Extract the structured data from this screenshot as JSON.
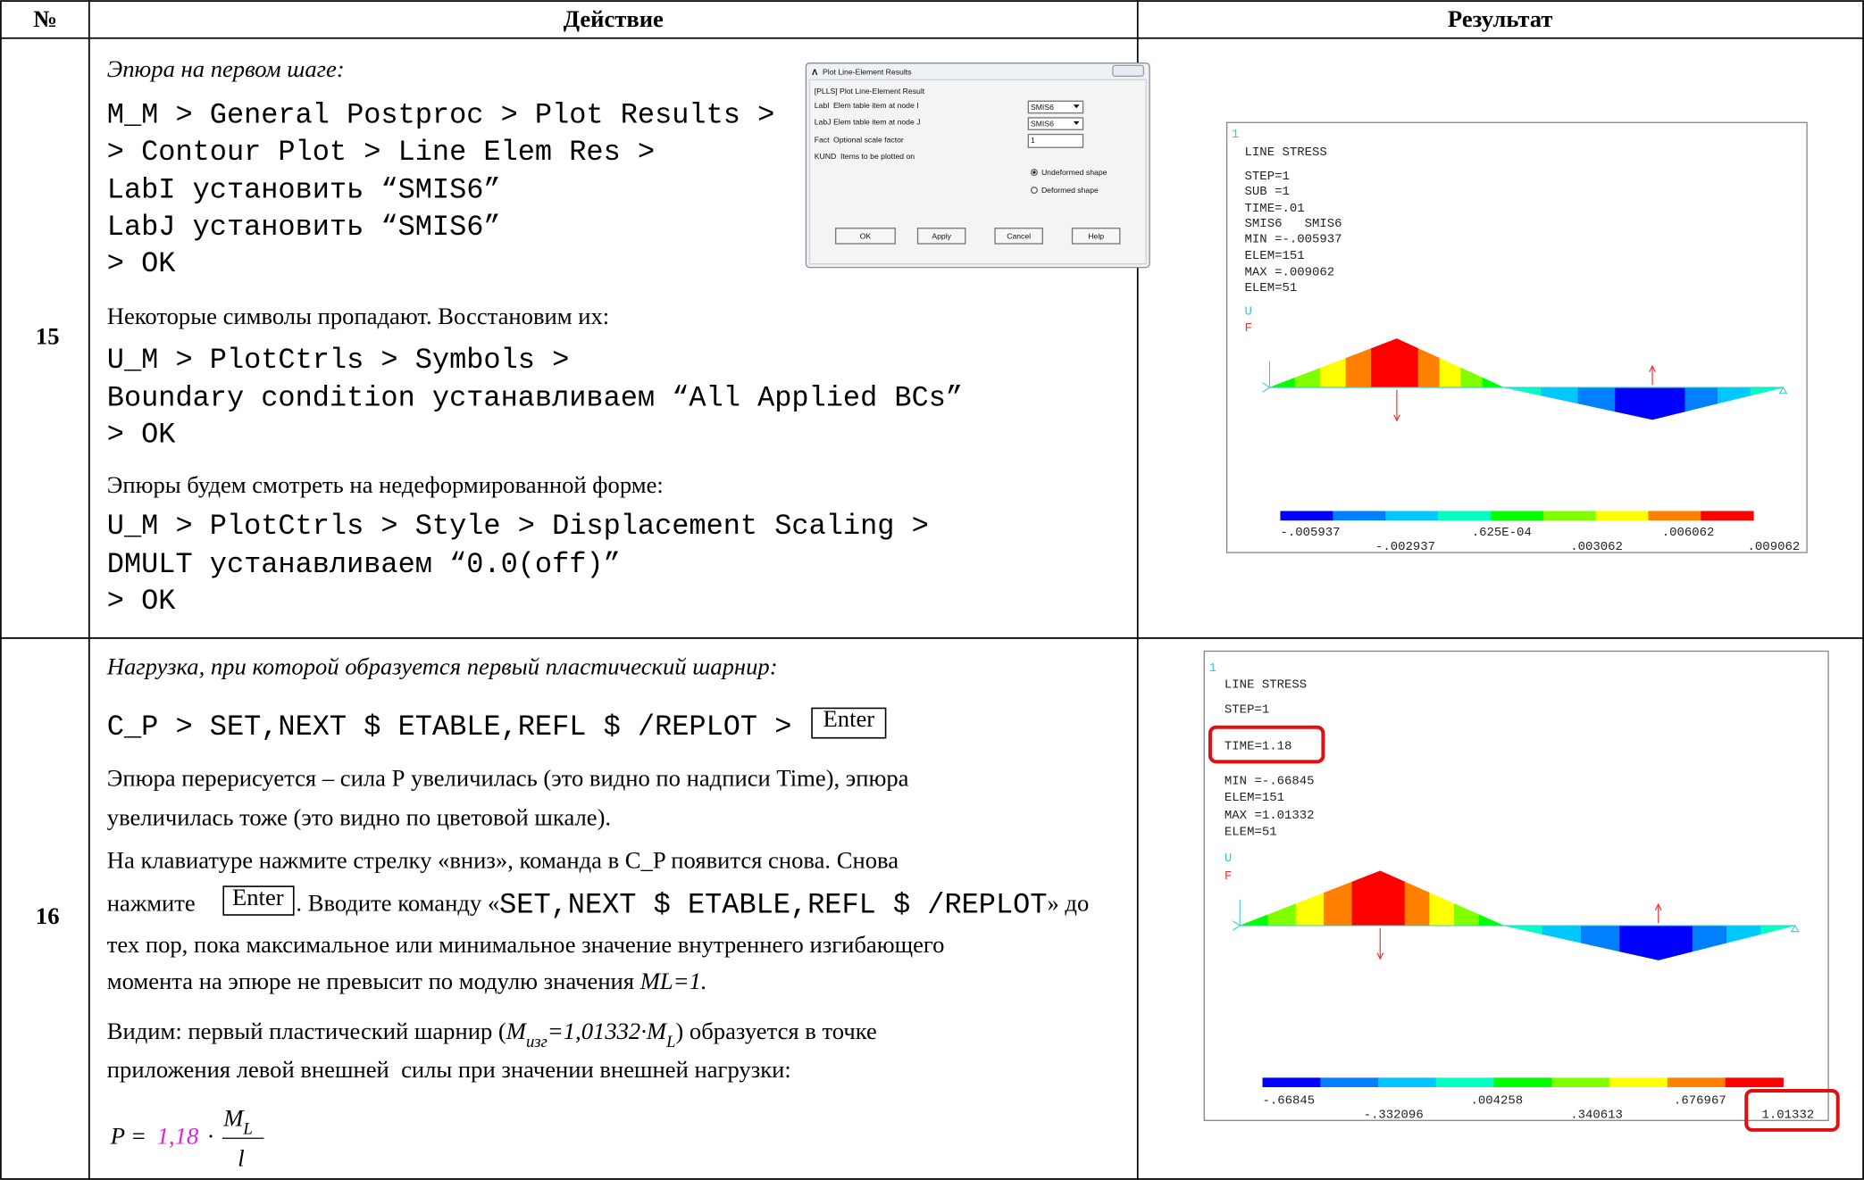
{
  "header": {
    "number": "№",
    "action": "Действие",
    "result": "Результат"
  },
  "rows": [
    {
      "number": "15",
      "action": {
        "heading": "Эпюра на первом шаге:",
        "code_1": [
          "M_M > General Postproc > Plot Results >",
          "> Contour Plot > Line Elem Res >",
          "LabI установить “SMIS6”",
          "LabJ установить “SMIS6”",
          "> OK"
        ],
        "text_2": "Некоторые символы пропадают. Восстановим их:",
        "code_2": [
          "U_M > PlotCtrls > Symbols >",
          "Boundary condition устанавливаем “All Applied BCs”",
          "> OK"
        ],
        "text_3": "Эпюры будем смотреть на недеформированной форме:",
        "code_3": [
          "U_M > PlotCtrls > Style > Displacement Scaling >",
          "DMULT устанавливаем “0.0(off)”",
          "> OK"
        ]
      },
      "dialog": {
        "title": "Plot Line-Element Results",
        "subtitle": "[PLLS] Plot Line-Element Result",
        "fields": [
          {
            "name": "LabI",
            "label": "Elem table item at node I",
            "value": "SMIS6"
          },
          {
            "name": "LabJ",
            "label": "Elem table item at node J",
            "value": "SMIS6"
          },
          {
            "name": "Fact",
            "label": "Optional scale factor",
            "value": "1"
          }
        ],
        "kund": {
          "name": "KUND",
          "label": "Items to be plotted on",
          "options": [
            "Undeformed shape",
            "Deformed shape"
          ]
        },
        "buttons": [
          "OK",
          "Apply",
          "Cancel",
          "Help"
        ]
      },
      "result": {
        "window": "1",
        "title": "LINE STRESS",
        "lines": [
          "STEP=1",
          "SUB =1",
          "TIME=.01",
          "SMIS6   SMIS6",
          "MIN =-.005937",
          "ELEM=151",
          "MAX =.009062",
          "ELEM=51"
        ],
        "u": "U",
        "f": "F",
        "scale_labels": [
          "-.005937",
          "-.002937",
          ".625E-04",
          ".003062",
          ".006062",
          ".009062"
        ]
      }
    },
    {
      "number": "16",
      "action": {
        "heading": "Нагрузка, при которой образуется первый пластический шарнир:",
        "code": "C_P > SET,NEXT $ ETABLE,REFL $ /REPLOT >",
        "key": "Enter",
        "p1": [
          "Эпюра перерисуется – сила Р увеличилась (это видно по надписи Time), эпюра",
          "увеличилась тоже (это видно по цветовой шкале)."
        ],
        "p2_line_1": "На клавиатуре нажмите стрелку «вниз», команда в C_P появится снова. Снова",
        "p2_line_2": {
          "before": "нажмите",
          "key": "Enter",
          "middle": ". Вводите команду «",
          "command": "SET,NEXT $ ETABLE,REFL $ /REPLOT",
          "after": "» до"
        },
        "p2_line_3": "тех пор, пока максимальное или минимальное значение внутреннего изгибающего",
        "p2_line_4": {
          "text": "момента на эпюре не превысит по модулю значения",
          "formula": "ML=1."
        },
        "p3_line_1": {
          "before": "Видим: первый пластический шарнир (",
          "m": "M",
          "m_sub": "изг",
          "eq": "=1,01332·M",
          "eq_sub": "L",
          "after": ") образуется в точке"
        },
        "p3_line_2": "приложения левой внешней  силы при значении внешней нагрузки:",
        "formula": {
          "lhs": "P",
          "eq": "=",
          "coef": "1,18",
          "dot": "·",
          "num": "M",
          "num_sub": "L",
          "den": "l"
        }
      },
      "result": {
        "window": "1",
        "title": "LINE STRESS",
        "lines": [
          "STEP=1",
          "TIME=1.18",
          "MIN =-.66845",
          "ELEM=151",
          "MAX =1.01332",
          "ELEM=51"
        ],
        "u": "U",
        "f": "F",
        "scale_labels": [
          "-.66845",
          "-.332096",
          ".004258",
          ".340613",
          ".676967",
          "1.01332"
        ]
      }
    }
  ]
}
